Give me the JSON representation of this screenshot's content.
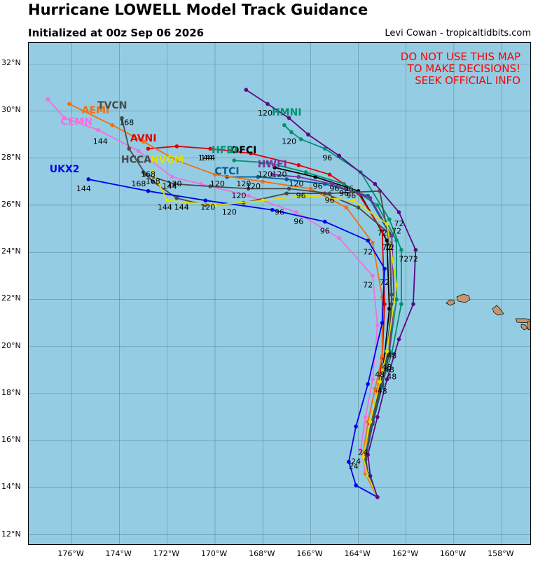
{
  "header": {
    "title": "Hurricane LOWELL Model Track Guidance",
    "subtitle": "Initialized at 00z Sep 06 2026",
    "credit": "Levi Cowan - tropicaltidbits.com"
  },
  "warning": [
    "DO NOT USE THIS MAP",
    "TO MAKE DECISIONS!",
    "SEEK OFFICIAL INFO"
  ],
  "axes": {
    "lon_ticks": [
      "176°W",
      "174°W",
      "172°W",
      "170°W",
      "168°W",
      "166°W",
      "164°W",
      "162°W",
      "160°W",
      "158°W"
    ],
    "lat_ticks": [
      "32°N",
      "30°N",
      "28°N",
      "26°N",
      "24°N",
      "22°N",
      "20°N",
      "18°N",
      "16°N",
      "14°N",
      "12°N"
    ]
  },
  "colors": {
    "ocean": "#94cde3",
    "land": "#c9956a",
    "grid": "#4a6e7a"
  },
  "chart_data": {
    "type": "track-map",
    "lon_range": [
      -177.8,
      -156.8
    ],
    "lat_range": [
      11.6,
      32.9
    ],
    "start": [
      -163.2,
      13.6
    ],
    "models": [
      {
        "name": "OFCI",
        "color": "#000000",
        "label_pos": [
          -168.8,
          28.2
        ],
        "points": [
          [
            -163.2,
            13.6
          ],
          [
            -163.6,
            14.5
          ],
          [
            -163.7,
            15.2
          ],
          [
            -163.5,
            16.5
          ],
          [
            -163.1,
            18.2
          ],
          [
            -162.9,
            19.6
          ],
          [
            -162.7,
            21.6
          ],
          [
            -162.8,
            24.5
          ],
          [
            -164.0,
            26.6
          ],
          [
            -165.8,
            27.2
          ],
          [
            -167.5,
            27.6
          ]
        ],
        "hour_labels": [
          [
            -162.7,
            24.1,
            "72"
          ],
          [
            -165.7,
            26.7,
            "96"
          ],
          [
            -167.9,
            27.2,
            "120"
          ]
        ]
      },
      {
        "name": "AVNI",
        "color": "#e00000",
        "label_pos": [
          -173.0,
          28.7
        ],
        "points": [
          [
            -163.2,
            13.6
          ],
          [
            -163.7,
            14.6
          ],
          [
            -163.8,
            15.3
          ],
          [
            -163.5,
            16.7
          ],
          [
            -163.2,
            18.1
          ],
          [
            -163.0,
            19.5
          ],
          [
            -162.9,
            21.8
          ],
          [
            -163.0,
            24.9
          ],
          [
            -164.0,
            26.5
          ],
          [
            -165.2,
            27.3
          ],
          [
            -166.5,
            27.7
          ],
          [
            -168.5,
            28.2
          ],
          [
            -170.2,
            28.4
          ],
          [
            -171.6,
            28.5
          ],
          [
            -172.8,
            28.4
          ]
        ],
        "hour_labels": [
          [
            -170.3,
            27.9,
            "144"
          ]
        ]
      },
      {
        "name": "HMNI",
        "color": "#009070",
        "label_pos": [
          -167.0,
          29.8
        ],
        "points": [
          [
            -163.2,
            13.6
          ],
          [
            -163.6,
            14.5
          ],
          [
            -163.7,
            15.3
          ],
          [
            -163.4,
            16.8
          ],
          [
            -163.0,
            18.4
          ],
          [
            -162.6,
            19.7
          ],
          [
            -162.2,
            21.8
          ],
          [
            -162.2,
            24.1
          ],
          [
            -162.7,
            25.4
          ],
          [
            -163.9,
            27.4
          ],
          [
            -165.4,
            28.4
          ],
          [
            -166.4,
            28.8
          ],
          [
            -166.8,
            29.1
          ],
          [
            -167.1,
            29.4
          ]
        ],
        "hour_labels": [
          [
            -162.1,
            23.6,
            "72"
          ],
          [
            -165.3,
            27.9,
            "96"
          ],
          [
            -166.9,
            28.6,
            "120"
          ]
        ]
      },
      {
        "name": "HFBI",
        "color": "#009070",
        "label_pos": [
          -169.6,
          28.2
        ],
        "points": [
          [
            -163.2,
            13.6
          ],
          [
            -163.6,
            14.6
          ],
          [
            -163.7,
            15.4
          ],
          [
            -163.4,
            16.9
          ],
          [
            -163.0,
            18.5
          ],
          [
            -162.7,
            19.8
          ],
          [
            -162.4,
            22.0
          ],
          [
            -162.4,
            24.5
          ],
          [
            -163.2,
            26.0
          ],
          [
            -164.6,
            26.9
          ],
          [
            -166.2,
            27.4
          ],
          [
            -167.8,
            27.8
          ],
          [
            -169.2,
            27.9
          ]
        ]
      },
      {
        "name": "CTCI",
        "color": "#005f9a",
        "label_pos": [
          -169.5,
          27.3
        ],
        "points": [
          [
            -163.2,
            13.6
          ],
          [
            -163.6,
            14.5
          ],
          [
            -163.7,
            15.2
          ],
          [
            -163.4,
            16.7
          ],
          [
            -163.0,
            18.3
          ],
          [
            -162.8,
            19.6
          ],
          [
            -162.6,
            21.8
          ],
          [
            -162.7,
            24.8
          ],
          [
            -163.6,
            26.4
          ],
          [
            -165.4,
            26.9
          ],
          [
            -167.0,
            27.1
          ],
          [
            -168.2,
            27.2
          ],
          [
            -169.5,
            27.2
          ]
        ],
        "hour_labels": [
          [
            -168.4,
            26.7,
            "120"
          ]
        ]
      },
      {
        "name": "HWFI",
        "color": "#7b2fa0",
        "label_pos": [
          -167.6,
          27.6
        ],
        "points": [
          [
            -163.2,
            13.6
          ],
          [
            -163.6,
            14.5
          ],
          [
            -163.7,
            15.3
          ],
          [
            -163.4,
            16.8
          ],
          [
            -163.0,
            18.4
          ],
          [
            -162.7,
            19.7
          ],
          [
            -162.5,
            22.0
          ],
          [
            -162.6,
            24.7
          ],
          [
            -163.5,
            26.3
          ],
          [
            -165.1,
            26.9
          ],
          [
            -166.5,
            27.2
          ],
          [
            -167.6,
            27.3
          ]
        ]
      },
      {
        "name": "AEMI",
        "color": "#f07010",
        "label_pos": [
          -175.0,
          29.9
        ],
        "points": [
          [
            -163.2,
            13.6
          ],
          [
            -163.7,
            14.6
          ],
          [
            -163.8,
            15.4
          ],
          [
            -163.6,
            16.8
          ],
          [
            -163.3,
            18.2
          ],
          [
            -163.0,
            19.6
          ],
          [
            -163.0,
            22.1
          ],
          [
            -163.4,
            24.4
          ],
          [
            -164.5,
            25.9
          ],
          [
            -166.0,
            26.7
          ],
          [
            -168.0,
            27.0
          ],
          [
            -170.0,
            27.3
          ],
          [
            -171.6,
            27.9
          ],
          [
            -173.0,
            28.7
          ],
          [
            -174.3,
            29.4
          ],
          [
            -176.1,
            30.3
          ]
        ],
        "hour_labels": [
          [
            -163.6,
            23.9,
            "72"
          ],
          [
            -164.6,
            26.4,
            "96"
          ]
        ]
      },
      {
        "name": "CEMN",
        "color": "#f070e0",
        "label_pos": [
          -175.8,
          29.4
        ],
        "points": [
          [
            -163.2,
            13.6
          ],
          [
            -163.7,
            14.7
          ],
          [
            -163.9,
            15.6
          ],
          [
            -163.7,
            17.0
          ],
          [
            -163.4,
            18.6
          ],
          [
            -163.2,
            20.9
          ],
          [
            -163.4,
            23.0
          ],
          [
            -164.8,
            24.6
          ],
          [
            -166.6,
            25.7
          ],
          [
            -168.6,
            26.4
          ],
          [
            -170.6,
            26.9
          ],
          [
            -171.8,
            27.2
          ],
          [
            -173.2,
            28.3
          ],
          [
            -174.9,
            29.2
          ],
          [
            -176.3,
            29.7
          ],
          [
            -177.0,
            30.5
          ]
        ],
        "hour_labels": [
          [
            -163.6,
            22.5,
            "72"
          ],
          [
            -166.5,
            25.2,
            "96"
          ]
        ]
      },
      {
        "name": "TVCN",
        "color": "#4a4a4a",
        "label_pos": [
          -174.3,
          30.1
        ],
        "points": [
          [
            -163.2,
            13.6
          ],
          [
            -163.6,
            14.5
          ],
          [
            -163.7,
            15.3
          ],
          [
            -163.4,
            16.8
          ],
          [
            -163.0,
            18.4
          ],
          [
            -162.8,
            19.7
          ],
          [
            -162.6,
            21.8
          ],
          [
            -162.7,
            24.4
          ],
          [
            -163.1,
            26.6
          ],
          [
            -165.2,
            26.5
          ],
          [
            -166.9,
            26.7
          ],
          [
            -168.6,
            26.7
          ],
          [
            -170.2,
            26.8
          ],
          [
            -171.7,
            26.9
          ],
          [
            -172.9,
            27.3
          ],
          [
            -173.6,
            28.4
          ],
          [
            -173.9,
            29.7
          ]
        ],
        "hour_labels": [
          [
            -173.7,
            29.4,
            "168"
          ]
        ]
      },
      {
        "name": "HCCA",
        "color": "#4a4a4a",
        "label_pos": [
          -173.3,
          27.8
        ],
        "points": [
          [
            -163.2,
            13.6
          ],
          [
            -163.6,
            14.5
          ],
          [
            -163.7,
            15.3
          ],
          [
            -163.4,
            16.8
          ],
          [
            -163.0,
            18.4
          ],
          [
            -162.7,
            19.7
          ],
          [
            -162.6,
            22.2
          ],
          [
            -162.7,
            24.8
          ],
          [
            -164.0,
            25.9
          ],
          [
            -165.4,
            26.5
          ],
          [
            -167.0,
            26.5
          ],
          [
            -168.8,
            26.1
          ],
          [
            -170.4,
            26.0
          ],
          [
            -171.6,
            26.3
          ],
          [
            -172.6,
            27.0
          ],
          [
            -173.0,
            27.4
          ]
        ],
        "hour_labels": [
          [
            -173.2,
            26.8,
            "168"
          ]
        ]
      },
      {
        "name": "UKX2",
        "color": "#0000ee",
        "label_pos": [
          -176.3,
          27.4
        ],
        "points": [
          [
            -163.2,
            13.6
          ],
          [
            -164.1,
            14.1
          ],
          [
            -164.4,
            15.1
          ],
          [
            -164.1,
            16.6
          ],
          [
            -163.6,
            18.4
          ],
          [
            -163.0,
            21.0
          ],
          [
            -162.9,
            23.3
          ],
          [
            -163.6,
            24.5
          ],
          [
            -165.4,
            25.3
          ],
          [
            -167.6,
            25.8
          ],
          [
            -170.4,
            26.2
          ],
          [
            -172.8,
            26.6
          ],
          [
            -175.3,
            27.1
          ]
        ],
        "hour_labels": [
          [
            -165.4,
            24.8,
            "96"
          ],
          [
            -175.5,
            26.6,
            "144"
          ]
        ]
      },
      {
        "name": "NVGM",
        "color": "#e0e000",
        "label_pos": [
          -172.0,
          27.8
        ],
        "points": [
          [
            -163.2,
            13.6
          ],
          [
            -163.6,
            14.5
          ],
          [
            -163.8,
            15.3
          ],
          [
            -163.5,
            16.8
          ],
          [
            -163.1,
            18.5
          ],
          [
            -162.8,
            19.8
          ],
          [
            -162.4,
            22.6
          ],
          [
            -162.8,
            25.2
          ],
          [
            -164.2,
            26.2
          ],
          [
            -166.2,
            26.4
          ],
          [
            -168.0,
            26.2
          ],
          [
            -170.0,
            26.0
          ],
          [
            -172.0,
            26.2
          ],
          [
            -172.6,
            27.4
          ]
        ],
        "hour_labels": [
          [
            -171.4,
            25.8,
            "144"
          ]
        ]
      },
      {
        "name": "",
        "color": "#5a0a85",
        "points": [
          [
            -163.2,
            13.6
          ],
          [
            -163.5,
            14.5
          ],
          [
            -163.6,
            15.4
          ],
          [
            -163.2,
            17.0
          ],
          [
            -162.8,
            18.6
          ],
          [
            -162.3,
            20.3
          ],
          [
            -161.7,
            21.8
          ],
          [
            -161.6,
            24.1
          ],
          [
            -162.3,
            25.7
          ],
          [
            -163.3,
            26.9
          ],
          [
            -164.8,
            28.1
          ],
          [
            -166.1,
            29.0
          ],
          [
            -166.9,
            29.7
          ],
          [
            -167.8,
            30.3
          ],
          [
            -168.7,
            30.9
          ]
        ],
        "hour_labels": [
          [
            -161.7,
            23.6,
            "72"
          ],
          [
            -167.9,
            29.8,
            "120"
          ]
        ]
      }
    ],
    "extra_labels": [
      [
        -162.4,
        24.8,
        "72"
      ],
      [
        -162.3,
        25.1,
        "72"
      ],
      [
        -162.9,
        22.6,
        "72"
      ],
      [
        -163.0,
        24.7,
        "72"
      ],
      [
        -162.8,
        24.1,
        "72"
      ],
      [
        -164.3,
        26.3,
        "96"
      ],
      [
        -164.6,
        26.4,
        "96"
      ],
      [
        -166.4,
        26.3,
        "96"
      ],
      [
        -165.2,
        26.1,
        "96"
      ],
      [
        -164.4,
        26.6,
        "96"
      ],
      [
        -165.0,
        26.6,
        "96"
      ],
      [
        -167.3,
        25.6,
        "96"
      ],
      [
        -166.6,
        26.8,
        "120"
      ],
      [
        -168.8,
        26.8,
        "120"
      ],
      [
        -169.0,
        26.3,
        "120"
      ],
      [
        -169.9,
        26.8,
        "120"
      ],
      [
        -170.3,
        25.8,
        "120"
      ],
      [
        -171.7,
        26.8,
        "120"
      ],
      [
        -167.3,
        27.2,
        "120"
      ],
      [
        -169.4,
        25.6,
        "120"
      ],
      [
        -171.9,
        26.7,
        "144"
      ],
      [
        -172.1,
        25.8,
        "144"
      ],
      [
        -170.4,
        27.9,
        "144"
      ],
      [
        -174.8,
        28.6,
        "144"
      ],
      [
        -171.4,
        25.8,
        "144"
      ],
      [
        -172.8,
        27.2,
        "168"
      ],
      [
        -172.6,
        26.9,
        "168"
      ],
      [
        -162.6,
        19.5,
        "48"
      ],
      [
        -162.7,
        18.9,
        "48"
      ],
      [
        -163.1,
        18.7,
        "48"
      ],
      [
        -162.8,
        19.0,
        "48"
      ],
      [
        -163.0,
        18.0,
        "48"
      ],
      [
        -162.6,
        18.6,
        "48"
      ],
      [
        -163.8,
        15.4,
        "24"
      ],
      [
        -164.2,
        14.8,
        "24"
      ],
      [
        -164.1,
        15.0,
        "24"
      ]
    ]
  }
}
